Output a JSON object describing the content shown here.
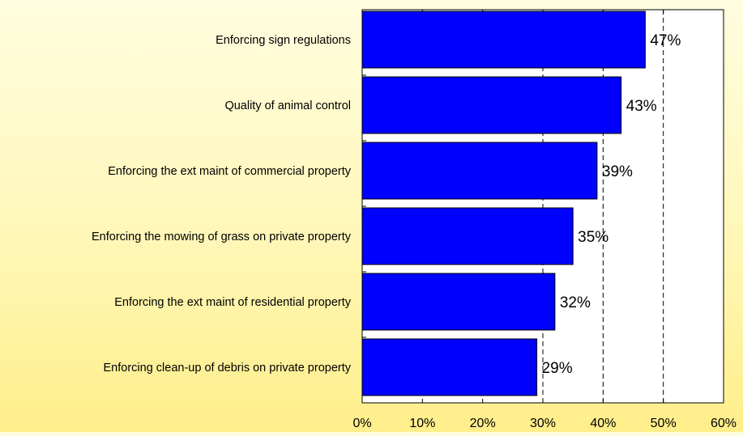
{
  "chart_data": {
    "type": "bar",
    "orientation": "horizontal",
    "categories": [
      "Enforcing sign regulations",
      "Quality of animal control",
      "Enforcing the ext maint of commercial property",
      "Enforcing the mowing of grass on private property",
      "Enforcing the ext maint of residential property",
      "Enforcing clean-up of debris on private property"
    ],
    "values": [
      47,
      43,
      39,
      35,
      32,
      29
    ],
    "data_labels": [
      "47%",
      "43%",
      "39%",
      "35%",
      "32%",
      "29%"
    ],
    "title": "",
    "xlabel": "",
    "ylabel": "",
    "xlim": [
      0,
      60
    ],
    "x_ticks": [
      0,
      10,
      20,
      30,
      40,
      50,
      60
    ],
    "x_tick_labels": [
      "0%",
      "10%",
      "20%",
      "30%",
      "40%",
      "50%",
      "60%"
    ],
    "gridlines": "dashed vertical at 30%, 40%, 50%",
    "grid_values": [
      30,
      40,
      50
    ],
    "bar_color": "#0000ff",
    "bar_edge_color": "#000000",
    "plot_background": "#ffffff",
    "legend": "none"
  },
  "colors": {
    "background_top": "#fffde0",
    "background_bottom": "#ffee8a",
    "bar": "#0000ff",
    "plot_area": "#ffffff",
    "text": "#000000"
  }
}
